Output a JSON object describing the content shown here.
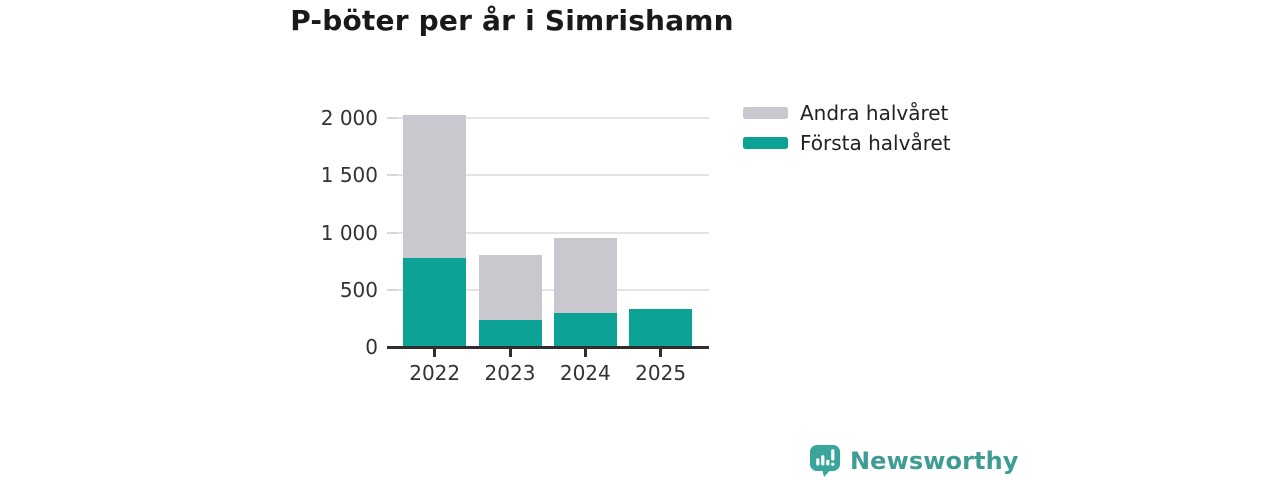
{
  "footer": {
    "brand": "Newsworthy"
  },
  "colors": {
    "first_half": "#0ca295",
    "second_half": "#c9c8cf",
    "grid": "#e4e4e8",
    "axis": "#2e2e2e",
    "tick_text": "#333333",
    "title_text": "#1a1a1a",
    "brand_text": "#3f9c94",
    "brand_icon": "#38a69a"
  },
  "chart_data": {
    "type": "bar",
    "stacked": true,
    "title": "P-böter per år i Simrishamn",
    "categories": [
      "2022",
      "2023",
      "2024",
      "2025"
    ],
    "series": [
      {
        "name": "Första halvåret",
        "color": "#0ca295",
        "values": [
          780,
          240,
          300,
          330
        ]
      },
      {
        "name": "Andra halvåret",
        "color": "#c9c8cf",
        "values": [
          1250,
          560,
          650,
          0
        ]
      }
    ],
    "totals": [
      2030,
      800,
      950,
      330
    ],
    "stack_order_bottom_to_top": [
      "Första halvåret",
      "Andra halvåret"
    ],
    "xlabel": "",
    "ylabel": "",
    "yticks": [
      0,
      500,
      1000,
      1500,
      2000
    ],
    "ytick_labels": [
      "0",
      "500",
      "1 000",
      "1 500",
      "2 000"
    ],
    "ylim": [
      0,
      2100
    ],
    "grid": true,
    "legend": {
      "position": "top-right",
      "entries": [
        "Andra halvåret",
        "Första halvåret"
      ]
    }
  }
}
